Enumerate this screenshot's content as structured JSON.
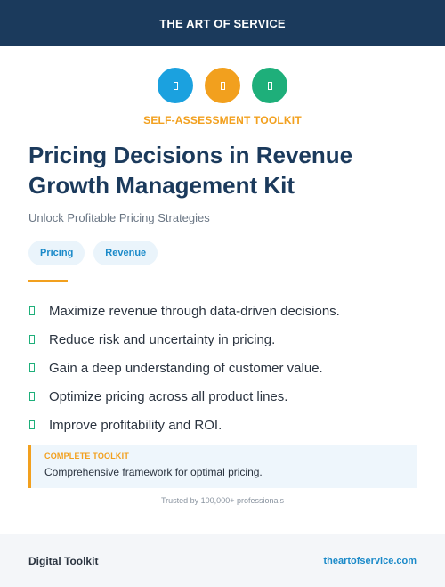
{
  "header": {
    "brand": "THE ART OF SERVICE"
  },
  "icons": [
    {
      "name": "blue-circle-icon",
      "color": "#1ba1df"
    },
    {
      "name": "orange-circle-icon",
      "color": "#f2a01e"
    },
    {
      "name": "green-circle-icon",
      "color": "#1eaf7a"
    }
  ],
  "kicker": "SELF-ASSESSMENT TOOLKIT",
  "title": "Pricing Decisions in Revenue Growth Management Kit",
  "subtitle": "Unlock Profitable Pricing Strategies",
  "tags": [
    "Pricing",
    "Revenue"
  ],
  "benefits": [
    "Maximize revenue through data-driven decisions.",
    "Reduce risk and uncertainty in pricing.",
    "Gain a deep understanding of customer value.",
    "Optimize pricing across all product lines.",
    "Improve profitability and ROI."
  ],
  "callout": {
    "label": "COMPLETE TOOLKIT",
    "text": "Comprehensive framework for optimal pricing."
  },
  "trust": "Trusted by 100,000+ professionals",
  "footer": {
    "left": "Digital Toolkit",
    "right": "theartofservice.com"
  },
  "colors": {
    "navy": "#1b3a5c",
    "accent_orange": "#f2a01e",
    "accent_blue": "#1ba1df",
    "accent_green": "#1eaf7a"
  }
}
